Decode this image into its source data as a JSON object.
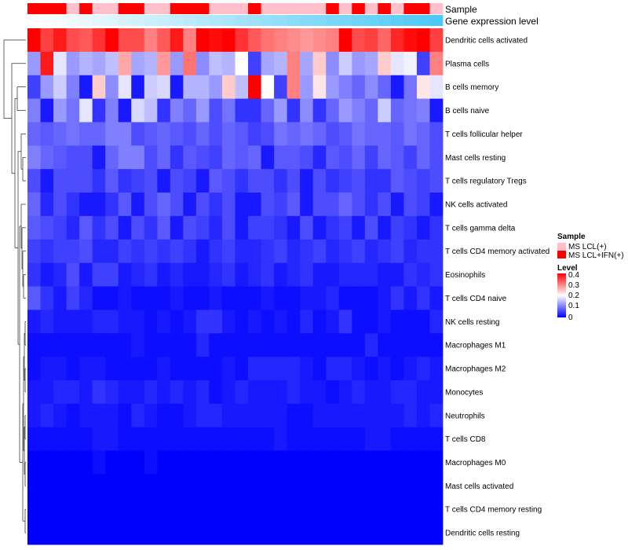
{
  "chart_data": {
    "type": "heatmap",
    "title": "",
    "rows": [
      "Dendritic cells activated",
      "Plasma cells",
      "B cells memory",
      "B cells naive",
      "T cells follicular helper",
      "Mast cells resting",
      "T cells regulatory  Tregs",
      "NK cells activated",
      "T cells gamma delta",
      "T cells CD4 memory activated",
      "Eosinophils",
      "T cells CD4 naive",
      "NK cells resting",
      "Macrophages M1",
      "Macrophages M2",
      "Monocytes",
      "Neutrophils",
      "T cells CD8",
      "Macrophages M0",
      "Mast cells activated",
      "T cells CD4 memory resting",
      "Dendritic cells resting"
    ],
    "n_columns": 32,
    "values": [
      [
        0.4,
        0.35,
        0.38,
        0.34,
        0.33,
        0.36,
        0.4,
        0.34,
        0.34,
        0.3,
        0.33,
        0.38,
        0.3,
        0.4,
        0.39,
        0.4,
        0.36,
        0.33,
        0.31,
        0.3,
        0.29,
        0.28,
        0.29,
        0.3,
        0.4,
        0.34,
        0.35,
        0.32,
        0.37,
        0.39,
        0.4,
        0.35
      ],
      [
        0.12,
        0.38,
        0.18,
        0.12,
        0.14,
        0.13,
        0.15,
        0.27,
        0.13,
        0.14,
        0.28,
        0.12,
        0.31,
        0.11,
        0.15,
        0.14,
        0.2,
        0.05,
        0.13,
        0.14,
        0.3,
        0.13,
        0.24,
        0.11,
        0.16,
        0.12,
        0.13,
        0.24,
        0.18,
        0.19,
        0.05,
        0.3
      ],
      [
        0.05,
        0.12,
        0.16,
        0.1,
        0.02,
        0.24,
        0.11,
        0.18,
        0.02,
        0.16,
        0.17,
        0.02,
        0.14,
        0.14,
        0.12,
        0.24,
        0.15,
        0.4,
        0.2,
        0.05,
        0.3,
        0.12,
        0.22,
        0.12,
        0.1,
        0.08,
        0.11,
        0.08,
        0.02,
        0.09,
        0.22,
        0.18
      ],
      [
        0.1,
        0.02,
        0.12,
        0.09,
        0.18,
        0.04,
        0.1,
        0.02,
        0.17,
        0.15,
        0.04,
        0.1,
        0.08,
        0.12,
        0.06,
        0.09,
        0.04,
        0.04,
        0.08,
        0.12,
        0.04,
        0.11,
        0.04,
        0.08,
        0.12,
        0.1,
        0.08,
        0.16,
        0.08,
        0.09,
        0.1,
        0.02
      ],
      [
        0.08,
        0.07,
        0.08,
        0.09,
        0.08,
        0.08,
        0.1,
        0.1,
        0.06,
        0.07,
        0.08,
        0.07,
        0.06,
        0.08,
        0.06,
        0.08,
        0.07,
        0.05,
        0.06,
        0.09,
        0.08,
        0.09,
        0.08,
        0.06,
        0.07,
        0.09,
        0.08,
        0.08,
        0.07,
        0.09,
        0.08,
        0.06
      ],
      [
        0.1,
        0.08,
        0.07,
        0.06,
        0.06,
        0.02,
        0.08,
        0.1,
        0.1,
        0.06,
        0.08,
        0.04,
        0.07,
        0.06,
        0.05,
        0.08,
        0.07,
        0.08,
        0.02,
        0.07,
        0.07,
        0.06,
        0.03,
        0.07,
        0.06,
        0.08,
        0.05,
        0.08,
        0.07,
        0.05,
        0.08,
        0.06
      ],
      [
        0.06,
        0.02,
        0.06,
        0.06,
        0.06,
        0.04,
        0.07,
        0.04,
        0.05,
        0.06,
        0.02,
        0.06,
        0.05,
        0.02,
        0.07,
        0.06,
        0.04,
        0.06,
        0.06,
        0.04,
        0.06,
        0.02,
        0.06,
        0.04,
        0.05,
        0.06,
        0.04,
        0.04,
        0.07,
        0.06,
        0.05,
        0.06
      ],
      [
        0.08,
        0.03,
        0.06,
        0.04,
        0.02,
        0.02,
        0.04,
        0.07,
        0.02,
        0.06,
        0.08,
        0.06,
        0.02,
        0.06,
        0.04,
        0.06,
        0.02,
        0.02,
        0.06,
        0.05,
        0.07,
        0.02,
        0.06,
        0.06,
        0.08,
        0.06,
        0.04,
        0.06,
        0.02,
        0.06,
        0.05,
        0.02
      ],
      [
        0.07,
        0.06,
        0.05,
        0.03,
        0.07,
        0.04,
        0.06,
        0.02,
        0.06,
        0.04,
        0.07,
        0.02,
        0.06,
        0.05,
        0.03,
        0.06,
        0.02,
        0.05,
        0.05,
        0.04,
        0.02,
        0.06,
        0.02,
        0.04,
        0.05,
        0.02,
        0.06,
        0.02,
        0.05,
        0.04,
        0.02,
        0.04
      ],
      [
        0.05,
        0.04,
        0.05,
        0.05,
        0.06,
        0.03,
        0.03,
        0.05,
        0.04,
        0.05,
        0.04,
        0.05,
        0.04,
        0.02,
        0.04,
        0.05,
        0.03,
        0.03,
        0.04,
        0.05,
        0.03,
        0.04,
        0.05,
        0.03,
        0.04,
        0.05,
        0.03,
        0.04,
        0.05,
        0.03,
        0.04,
        0.04
      ],
      [
        0.04,
        0.02,
        0.03,
        0.06,
        0.02,
        0.05,
        0.05,
        0.02,
        0.03,
        0.04,
        0.02,
        0.03,
        0.02,
        0.02,
        0.03,
        0.04,
        0.02,
        0.03,
        0.04,
        0.02,
        0.03,
        0.04,
        0.02,
        0.02,
        0.03,
        0.03,
        0.03,
        0.02,
        0.02,
        0.04,
        0.03,
        0.04
      ],
      [
        0.07,
        0.04,
        0.02,
        0.05,
        0.03,
        0.01,
        0.01,
        0.02,
        0.01,
        0.01,
        0.01,
        0.02,
        0.01,
        0.01,
        0.02,
        0.01,
        0.01,
        0.01,
        0.02,
        0.01,
        0.01,
        0.02,
        0.02,
        0.03,
        0.01,
        0.01,
        0.01,
        0.02,
        0.04,
        0.02,
        0.04,
        0.02
      ],
      [
        0.02,
        0.03,
        0.02,
        0.02,
        0.02,
        0.03,
        0.03,
        0.02,
        0.02,
        0.01,
        0.02,
        0.01,
        0.02,
        0.04,
        0.04,
        0.02,
        0.01,
        0.02,
        0.01,
        0.02,
        0.01,
        0.03,
        0.01,
        0.02,
        0.04,
        0.01,
        0.01,
        0.02,
        0.01,
        0.01,
        0.01,
        0.03
      ],
      [
        0.01,
        0.01,
        0.01,
        0.01,
        0.01,
        0.01,
        0.01,
        0.01,
        0.02,
        0.01,
        0.01,
        0.01,
        0.01,
        0.03,
        0.01,
        0.01,
        0.01,
        0.01,
        0.01,
        0.01,
        0.01,
        0.01,
        0.01,
        0.01,
        0.01,
        0.01,
        0.03,
        0.01,
        0.01,
        0.01,
        0.01,
        0.01
      ],
      [
        0.01,
        0.02,
        0.02,
        0.01,
        0.02,
        0.02,
        0.01,
        0.01,
        0.01,
        0.01,
        0.02,
        0.01,
        0.01,
        0.01,
        0.01,
        0.02,
        0.01,
        0.03,
        0.03,
        0.03,
        0.03,
        0.02,
        0.01,
        0.03,
        0.03,
        0.02,
        0.01,
        0.02,
        0.01,
        0.02,
        0.03,
        0.02
      ],
      [
        0.02,
        0.02,
        0.03,
        0.03,
        0.02,
        0.04,
        0.03,
        0.02,
        0.02,
        0.03,
        0.02,
        0.03,
        0.02,
        0.03,
        0.01,
        0.02,
        0.03,
        0.02,
        0.02,
        0.02,
        0.03,
        0.02,
        0.02,
        0.01,
        0.02,
        0.03,
        0.02,
        0.02,
        0.03,
        0.03,
        0.02,
        0.02
      ],
      [
        0.02,
        0.03,
        0.02,
        0.01,
        0.02,
        0.02,
        0.02,
        0.01,
        0.03,
        0.02,
        0.01,
        0.01,
        0.02,
        0.03,
        0.03,
        0.02,
        0.02,
        0.02,
        0.02,
        0.02,
        0.01,
        0.01,
        0.02,
        0.02,
        0.02,
        0.02,
        0.02,
        0.02,
        0.02,
        0.03,
        0.02,
        0.03
      ],
      [
        0.01,
        0.01,
        0.01,
        0.01,
        0.01,
        0.02,
        0.02,
        0.01,
        0.01,
        0.01,
        0.01,
        0.01,
        0.01,
        0.01,
        0.01,
        0.01,
        0.01,
        0.01,
        0.01,
        0.02,
        0.01,
        0.01,
        0.01,
        0.01,
        0.01,
        0.01,
        0.02,
        0.02,
        0.01,
        0.01,
        0.01,
        0.01
      ],
      [
        0.0,
        0.0,
        0.0,
        0.0,
        0.0,
        0.01,
        0.0,
        0.0,
        0.0,
        0.01,
        0.0,
        0.0,
        0.0,
        0.0,
        0.0,
        0.0,
        0.0,
        0.0,
        0.0,
        0.0,
        0.0,
        0.0,
        0.0,
        0.0,
        0.0,
        0.0,
        0.0,
        0.0,
        0.0,
        0.0,
        0.0,
        0.0
      ],
      [
        0.0,
        0.0,
        0.0,
        0.0,
        0.0,
        0.0,
        0.0,
        0.0,
        0.0,
        0.0,
        0.0,
        0.0,
        0.0,
        0.0,
        0.0,
        0.0,
        0.0,
        0.0,
        0.0,
        0.0,
        0.0,
        0.0,
        0.0,
        0.0,
        0.0,
        0.0,
        0.0,
        0.0,
        0.0,
        0.0,
        0.0,
        0.0
      ],
      [
        0.0,
        0.0,
        0.0,
        0.0,
        0.0,
        0.0,
        0.0,
        0.0,
        0.0,
        0.0,
        0.0,
        0.0,
        0.0,
        0.0,
        0.0,
        0.0,
        0.0,
        0.0,
        0.0,
        0.0,
        0.0,
        0.0,
        0.0,
        0.0,
        0.0,
        0.0,
        0.0,
        0.0,
        0.0,
        0.0,
        0.0,
        0.0
      ],
      [
        0.0,
        0.0,
        0.0,
        0.0,
        0.0,
        0.0,
        0.0,
        0.0,
        0.0,
        0.0,
        0.0,
        0.0,
        0.0,
        0.0,
        0.0,
        0.0,
        0.0,
        0.0,
        0.0,
        0.0,
        0.0,
        0.0,
        0.0,
        0.0,
        0.0,
        0.0,
        0.0,
        0.0,
        0.0,
        0.0,
        0.0,
        0.0
      ]
    ],
    "column_annotations": [
      {
        "name": "Sample",
        "values": [
          "MS LCL+IFN(+)",
          "MS LCL+IFN(+)",
          "MS LCL+IFN(+)",
          "MS LCL(+)",
          "MS LCL+IFN(+)",
          "MS LCL(+)",
          "MS LCL(+)",
          "MS LCL+IFN(+)",
          "MS LCL+IFN(+)",
          "MS LCL(+)",
          "MS LCL(+)",
          "MS LCL+IFN(+)",
          "MS LCL+IFN(+)",
          "MS LCL+IFN(+)",
          "MS LCL(+)",
          "MS LCL(+)",
          "MS LCL(+)",
          "MS LCL+IFN(+)",
          "MS LCL(+)",
          "MS LCL(+)",
          "MS LCL(+)",
          "MS LCL(+)",
          "MS LCL(+)",
          "MS LCL+IFN(+)",
          "MS LCL(+)",
          "MS LCL+IFN(+)",
          "MS LCL(+)",
          "MS LCL+IFN(+)",
          "MS LCL(+)",
          "MS LCL+IFN(+)",
          "MS LCL+IFN(+)",
          "MS LCL(+)"
        ]
      },
      {
        "name": "Gene expression level",
        "values": [
          0.0,
          0.03,
          0.06,
          0.1,
          0.13,
          0.16,
          0.19,
          0.23,
          0.26,
          0.29,
          0.32,
          0.35,
          0.39,
          0.42,
          0.45,
          0.48,
          0.52,
          0.55,
          0.58,
          0.61,
          0.65,
          0.68,
          0.71,
          0.74,
          0.77,
          0.81,
          0.84,
          0.87,
          0.9,
          0.94,
          0.97,
          1.0
        ]
      }
    ],
    "legend": {
      "sample": {
        "title": "Sample",
        "entries": [
          {
            "label": "MS LCL(+)",
            "color": "#FFC0CB"
          },
          {
            "label": "MS LCL+IFN(+)",
            "color": "#FF0000"
          }
        ]
      },
      "level": {
        "title": "Level",
        "range": [
          0,
          0.4
        ],
        "ticks": [
          0.4,
          0.3,
          0.2,
          0.1,
          0
        ],
        "tick_labels": [
          "0.4",
          "0.3",
          "0.2",
          "0.1",
          "0"
        ]
      },
      "placement": "right"
    },
    "color_scale": {
      "low": "#0000FF",
      "mid": "#FFFFFF",
      "high": "#FF0000",
      "domain": [
        0,
        0.4
      ]
    },
    "annotation_bar_colors": {
      "gene_expression_low": "#FFFFFF",
      "gene_expression_high": "#4DC9F6"
    },
    "row_dendrogram": true,
    "column_dendrogram": false
  }
}
